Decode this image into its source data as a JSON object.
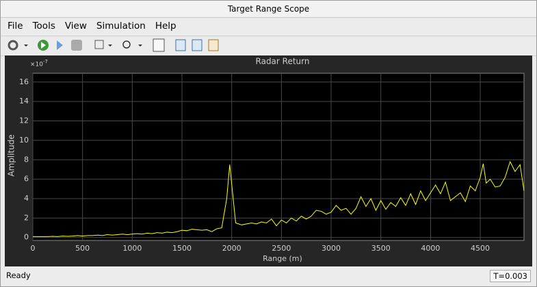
{
  "window": {
    "title": "Target Range Scope"
  },
  "menu": [
    "File",
    "Tools",
    "View",
    "Simulation",
    "Help"
  ],
  "status": {
    "left": "Ready",
    "right": "T=0.003"
  },
  "chart_data": {
    "type": "line",
    "title": "Radar Return",
    "x_label": "Range (m)",
    "y_label": "Amplitude",
    "y_multiplier": {
      "base": "×10",
      "exponent": "-7"
    },
    "xlim": [
      0,
      4940
    ],
    "ylim": [
      -0.3,
      16.9
    ],
    "xticks": [
      0,
      500,
      1000,
      1500,
      2000,
      2500,
      3000,
      3500,
      4000,
      4500
    ],
    "yticks": [
      0,
      2,
      4,
      6,
      8,
      10,
      12,
      14,
      16
    ],
    "grid": true,
    "series": [
      {
        "color": "#ffff00",
        "x": [
          0,
          50,
          100,
          150,
          200,
          250,
          300,
          350,
          400,
          450,
          500,
          550,
          600,
          650,
          700,
          750,
          800,
          850,
          900,
          950,
          1000,
          1050,
          1100,
          1150,
          1200,
          1250,
          1300,
          1350,
          1400,
          1450,
          1500,
          1550,
          1600,
          1650,
          1700,
          1750,
          1800,
          1850,
          1900,
          1950,
          1980,
          2010,
          2040,
          2100,
          2150,
          2200,
          2250,
          2300,
          2350,
          2400,
          2450,
          2500,
          2550,
          2600,
          2650,
          2700,
          2750,
          2800,
          2850,
          2900,
          2950,
          3000,
          3050,
          3100,
          3150,
          3200,
          3250,
          3300,
          3350,
          3400,
          3450,
          3500,
          3550,
          3600,
          3650,
          3700,
          3750,
          3800,
          3850,
          3900,
          3950,
          4000,
          4050,
          4100,
          4150,
          4200,
          4250,
          4300,
          4350,
          4400,
          4450,
          4500,
          4530,
          4560,
          4600,
          4650,
          4700,
          4750,
          4800,
          4850,
          4900,
          4940
        ],
        "values": [
          0.1,
          0.1,
          0.1,
          0.1,
          0.12,
          0.1,
          0.15,
          0.12,
          0.15,
          0.2,
          0.15,
          0.2,
          0.2,
          0.25,
          0.2,
          0.3,
          0.25,
          0.3,
          0.35,
          0.3,
          0.35,
          0.4,
          0.35,
          0.45,
          0.4,
          0.5,
          0.45,
          0.55,
          0.5,
          0.6,
          0.75,
          0.7,
          0.85,
          0.8,
          0.75,
          0.8,
          0.6,
          0.9,
          1.0,
          4.0,
          7.5,
          4.5,
          1.5,
          1.3,
          1.4,
          1.5,
          1.4,
          1.6,
          1.5,
          1.9,
          1.2,
          1.8,
          1.5,
          2.0,
          1.7,
          2.2,
          1.9,
          2.2,
          2.8,
          2.7,
          2.4,
          2.6,
          3.3,
          2.8,
          3.0,
          2.4,
          3.0,
          4.2,
          3.2,
          4.0,
          2.8,
          3.8,
          2.9,
          3.6,
          3.2,
          4.1,
          3.3,
          4.5,
          3.4,
          4.8,
          3.8,
          4.6,
          5.4,
          4.5,
          5.7,
          3.8,
          4.2,
          4.6,
          3.7,
          5.3,
          4.8,
          6.2,
          7.6,
          5.6,
          6.0,
          5.2,
          5.3,
          6.2,
          7.8,
          6.8,
          7.5,
          4.8
        ]
      }
    ]
  }
}
